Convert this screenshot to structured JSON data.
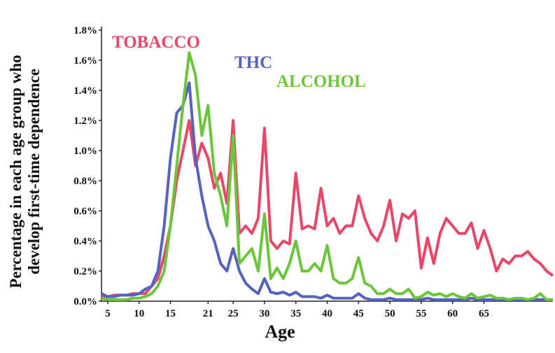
{
  "chart_data": {
    "type": "line",
    "y_label": [
      "Percentage in each age group who",
      "develop first-time dependence"
    ],
    "x_label": "Age",
    "x": [
      4,
      5,
      6,
      7,
      8,
      9,
      10,
      11,
      12,
      13,
      14,
      15,
      16,
      17,
      18,
      19,
      20,
      21,
      22,
      23,
      24,
      25,
      26,
      27,
      28,
      29,
      30,
      31,
      32,
      33,
      34,
      35,
      36,
      37,
      38,
      39,
      40,
      41,
      42,
      43,
      44,
      45,
      46,
      47,
      48,
      49,
      50,
      51,
      52,
      53,
      54,
      55,
      56,
      57,
      58,
      59,
      60,
      61,
      62,
      63,
      64,
      65,
      66,
      67,
      68,
      69,
      70,
      71,
      72,
      73,
      74,
      75,
      76
    ],
    "xlim": [
      4,
      76
    ],
    "xticks": [
      5,
      10,
      15,
      21,
      25,
      30,
      35,
      40,
      45,
      50,
      55,
      60,
      65
    ],
    "ylim": [
      0,
      1.8
    ],
    "yticks": [
      {
        "value": 0,
        "label": "0.0%"
      },
      {
        "value": 0.2,
        "label": "0.2%"
      },
      {
        "value": 0.4,
        "label": "0.4%"
      },
      {
        "value": 0.6,
        "label": "0.6%"
      },
      {
        "value": 0.8,
        "label": "0.8%"
      },
      {
        "value": 1.0,
        "label": "1.0%"
      },
      {
        "value": 1.2,
        "label": "1.2%"
      },
      {
        "value": 1.4,
        "label": "1.4%"
      },
      {
        "value": 1.6,
        "label": "1.6%"
      },
      {
        "value": 1.8,
        "label": "1.8%"
      }
    ],
    "series": [
      {
        "name": "TOBACCO",
        "color": "#e8476a",
        "values": [
          0.03,
          0.03,
          0.04,
          0.04,
          0.04,
          0.05,
          0.05,
          0.05,
          0.1,
          0.15,
          0.3,
          0.5,
          0.8,
          1.0,
          1.2,
          0.9,
          1.05,
          0.95,
          0.75,
          0.85,
          0.65,
          1.2,
          0.45,
          0.5,
          0.45,
          0.55,
          1.15,
          0.4,
          0.35,
          0.4,
          0.38,
          0.85,
          0.48,
          0.5,
          0.48,
          0.75,
          0.5,
          0.55,
          0.45,
          0.5,
          0.5,
          0.7,
          0.55,
          0.45,
          0.4,
          0.5,
          0.67,
          0.4,
          0.58,
          0.55,
          0.6,
          0.22,
          0.42,
          0.25,
          0.45,
          0.55,
          0.5,
          0.45,
          0.45,
          0.52,
          0.35,
          0.47,
          0.35,
          0.2,
          0.28,
          0.25,
          0.3,
          0.3,
          0.33,
          0.28,
          0.25,
          0.2,
          0.17
        ]
      },
      {
        "name": "THC",
        "color": "#5563c0",
        "values": [
          0.05,
          0.03,
          0.03,
          0.04,
          0.04,
          0.04,
          0.05,
          0.08,
          0.1,
          0.2,
          0.5,
          0.95,
          1.25,
          1.3,
          1.45,
          0.95,
          0.7,
          0.5,
          0.4,
          0.25,
          0.2,
          0.35,
          0.2,
          0.12,
          0.08,
          0.05,
          0.15,
          0.06,
          0.05,
          0.06,
          0.04,
          0.06,
          0.03,
          0.03,
          0.03,
          0.02,
          0.04,
          0.02,
          0.02,
          0.02,
          0.02,
          0.05,
          0.02,
          0.01,
          0.01,
          0.01,
          0.02,
          0.01,
          0.01,
          0.01,
          0.01,
          0.01,
          0.02,
          0.01,
          0.01,
          0.01,
          0.01,
          0.01,
          0.01,
          0.02,
          0.01,
          0.01,
          0.01,
          0.01,
          0.01,
          0.01,
          0.01,
          0.01,
          0.01,
          0.01,
          0.01,
          0.01,
          0.01
        ]
      },
      {
        "name": "ALCOHOL",
        "color": "#6cc63a",
        "values": [
          0.02,
          0.01,
          0.01,
          0.01,
          0.01,
          0.02,
          0.02,
          0.03,
          0.05,
          0.1,
          0.2,
          0.5,
          0.9,
          1.3,
          1.65,
          1.5,
          1.1,
          1.3,
          0.85,
          0.7,
          0.5,
          1.1,
          0.25,
          0.3,
          0.35,
          0.2,
          0.58,
          0.15,
          0.22,
          0.15,
          0.25,
          0.4,
          0.2,
          0.2,
          0.25,
          0.2,
          0.37,
          0.15,
          0.12,
          0.12,
          0.15,
          0.29,
          0.12,
          0.1,
          0.05,
          0.05,
          0.08,
          0.05,
          0.05,
          0.08,
          0.02,
          0.03,
          0.06,
          0.04,
          0.05,
          0.03,
          0.05,
          0.03,
          0.02,
          0.05,
          0.02,
          0.03,
          0.04,
          0.02,
          0.02,
          0.01,
          0.02,
          0.02,
          0.01,
          0.02,
          0.05,
          0.01,
          0.01
        ]
      }
    ]
  }
}
